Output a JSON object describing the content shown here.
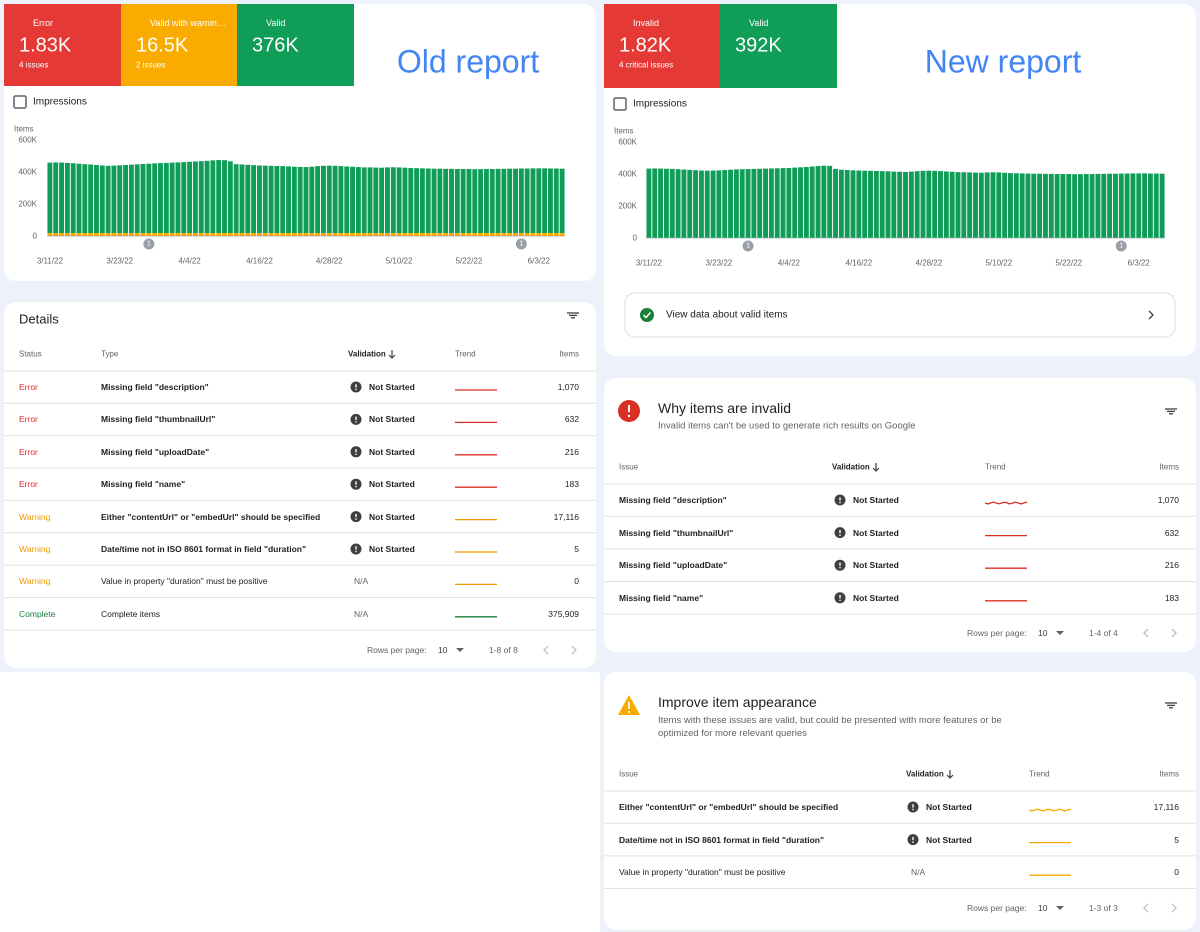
{
  "old_report": {
    "heading": "Old report",
    "tiles": [
      {
        "label": "Error",
        "value": "1.83K",
        "sub": "4 issues",
        "color": "#e53935"
      },
      {
        "label": "Valid with warnin…",
        "value": "16.5K",
        "sub": "2 issues",
        "color": "#f9ab00"
      },
      {
        "label": "Valid",
        "value": "376K",
        "color": "#0f9d58"
      }
    ],
    "impressions": "Impressions",
    "chart_data": {
      "type": "bar",
      "stacked": true,
      "y_label": "Items",
      "grid": false,
      "ylim": [
        0,
        600000
      ],
      "yticks": [
        0,
        {
          "value": 200000,
          "label": "200K"
        },
        {
          "value": 400000,
          "label": "400K"
        },
        {
          "value": 600000,
          "label": "600K"
        }
      ],
      "categories": [
        "3/11/22",
        null,
        null,
        null,
        null,
        null,
        null,
        null,
        null,
        null,
        null,
        null,
        "3/23/22",
        null,
        null,
        null,
        null,
        null,
        null,
        null,
        null,
        null,
        null,
        null,
        "4/4/22",
        null,
        null,
        null,
        null,
        null,
        null,
        null,
        null,
        null,
        null,
        null,
        "4/16/22",
        null,
        null,
        null,
        null,
        null,
        null,
        null,
        null,
        null,
        null,
        null,
        "4/28/22",
        null,
        null,
        null,
        null,
        null,
        null,
        null,
        null,
        null,
        null,
        null,
        "5/10/22",
        null,
        null,
        null,
        null,
        null,
        null,
        null,
        null,
        null,
        null,
        null,
        "5/22/22",
        null,
        null,
        null,
        null,
        null,
        null,
        null,
        null,
        null,
        null,
        null,
        "6/3/22",
        null,
        null,
        null,
        null
      ],
      "series": [
        {
          "color": "#e53935",
          "values": [
            1800,
            1800,
            1800,
            1800,
            1800,
            1800,
            1800,
            1800,
            1800,
            1800,
            1800,
            1800,
            1800,
            1800,
            1800,
            1800,
            1800,
            1800,
            1800,
            1800,
            1800,
            1800,
            1800,
            1800,
            1800,
            1800,
            1800,
            1800,
            1800,
            1800,
            1800,
            1800,
            1800,
            1800,
            1800,
            1800,
            1800,
            1800,
            1800,
            1800,
            1800,
            1800,
            1800,
            1800,
            1800,
            1800,
            1800,
            1800,
            1800,
            1800,
            1800,
            1800,
            1800,
            1800,
            1800,
            1800,
            1800,
            1800,
            1800,
            1800,
            1800,
            1800,
            1800,
            1800,
            1800,
            1800,
            1800,
            1800,
            1800,
            1800,
            1800,
            1800,
            1800,
            1800,
            1800,
            1800,
            1800,
            1800,
            1800,
            1800,
            1800,
            1800,
            1800,
            1800,
            1800,
            1800,
            1800,
            1800,
            1800
          ]
        },
        {
          "color": "#f9ab00",
          "values": [
            17000,
            17000,
            17000,
            17000,
            17000,
            17000,
            17000,
            17000,
            17000,
            17000,
            17000,
            17000,
            17000,
            17000,
            17000,
            17000,
            17000,
            17000,
            17000,
            17000,
            17000,
            17000,
            17000,
            17000,
            17000,
            17000,
            17000,
            17000,
            17000,
            17000,
            17000,
            17000,
            17000,
            17000,
            17000,
            17000,
            17000,
            17000,
            17000,
            17000,
            17000,
            17000,
            17000,
            17000,
            17000,
            17000,
            17000,
            17000,
            17000,
            17000,
            17000,
            17000,
            17000,
            17000,
            17000,
            17000,
            17000,
            17000,
            17000,
            17000,
            17000,
            17000,
            17000,
            17000,
            17000,
            17000,
            17000,
            17000,
            17000,
            17000,
            17000,
            17000,
            17000,
            17000,
            17000,
            17000,
            17000,
            17000,
            17000,
            17000,
            17000,
            17000,
            17000,
            17000,
            17000,
            17000,
            17000,
            17000,
            17000
          ]
        },
        {
          "color": "#0f9d58",
          "values": [
            440000,
            441000,
            440000,
            438000,
            436000,
            433000,
            430000,
            428000,
            425000,
            422000,
            420000,
            421000,
            423000,
            425000,
            427000,
            429000,
            431000,
            433000,
            435000,
            437000,
            438000,
            440000,
            441000,
            443000,
            445000,
            447000,
            449000,
            451000,
            454000,
            456000,
            455000,
            448000,
            430000,
            428000,
            426000,
            424000,
            422000,
            421000,
            420000,
            419000,
            418000,
            416000,
            414000,
            413000,
            412000,
            414000,
            418000,
            420000,
            421000,
            420000,
            418000,
            416000,
            414000,
            412000,
            410000,
            410000,
            409000,
            408000,
            410000,
            411000,
            410000,
            408000,
            406000,
            405000,
            404000,
            403000,
            402000,
            402000,
            401000,
            401000,
            400000,
            400000,
            400000,
            399000,
            399000,
            400000,
            400000,
            401000,
            401000,
            402000,
            402000,
            403000,
            403000,
            404000,
            404000,
            404000,
            403000,
            403000,
            402000
          ]
        }
      ],
      "annotations": [
        {
          "label": "1",
          "x": 17
        },
        {
          "label": "1",
          "x": 81
        }
      ]
    }
  },
  "details": {
    "title": "Details",
    "columns": [
      "Status",
      "Type",
      "Validation",
      "Trend",
      "Items"
    ],
    "rows": [
      {
        "cells": [
          "Error",
          "Missing field \"description\"",
          "Not Started",
          "1,070"
        ],
        "icon": true,
        "color": "#d93025"
      },
      {
        "cells": [
          "Error",
          "Missing field \"thumbnailUrl\"",
          "Not Started",
          "632"
        ],
        "icon": true,
        "color": "#d93025"
      },
      {
        "cells": [
          "Error",
          "Missing field \"uploadDate\"",
          "Not Started",
          "216"
        ],
        "icon": true,
        "color": "#d93025"
      },
      {
        "cells": [
          "Error",
          "Missing field \"name\"",
          "Not Started",
          "183"
        ],
        "icon": true,
        "color": "#d93025"
      },
      {
        "cells": [
          "Warning",
          "Either \"contentUrl\" or \"embedUrl\" should be specified",
          "Not Started",
          "17,116"
        ],
        "icon": true,
        "color": "#f29900"
      },
      {
        "cells": [
          "Warning",
          "Date/time not in ISO 8601 format in field \"duration\"",
          "Not Started",
          "5"
        ],
        "icon": true,
        "color": "#f29900"
      },
      {
        "cells": [
          "Warning",
          "Value in property \"duration\" must be positive",
          "N/A",
          "0"
        ],
        "icon": false,
        "color": "#f29900"
      },
      {
        "cells": [
          "Complete",
          "Complete items",
          "N/A",
          "375,909"
        ],
        "icon": false,
        "color": "#188038"
      }
    ],
    "footer": {
      "rows_per_page": "Rows per page:",
      "page_size": "10",
      "range": "1-8 of 8"
    }
  },
  "new_report": {
    "heading": "New report",
    "tiles": [
      {
        "label": "Invalid",
        "value": "1.82K",
        "sub": "4 critical issues",
        "color": "#e53935"
      },
      {
        "label": "Valid",
        "value": "392K",
        "color": "#0f9d58"
      }
    ],
    "impressions": "Impressions",
    "chart_data": {
      "type": "bar",
      "stacked": true,
      "y_label": "Items",
      "grid": false,
      "ylim": [
        0,
        600000
      ],
      "yticks": [
        0,
        {
          "value": 200000,
          "label": "200K"
        },
        {
          "value": 400000,
          "label": "400K"
        },
        {
          "value": 600000,
          "label": "600K"
        }
      ],
      "categories": [
        "3/11/22",
        null,
        null,
        null,
        null,
        null,
        null,
        null,
        null,
        null,
        null,
        null,
        "3/23/22",
        null,
        null,
        null,
        null,
        null,
        null,
        null,
        null,
        null,
        null,
        null,
        "4/4/22",
        null,
        null,
        null,
        null,
        null,
        null,
        null,
        null,
        null,
        null,
        null,
        "4/16/22",
        null,
        null,
        null,
        null,
        null,
        null,
        null,
        null,
        null,
        null,
        null,
        "4/28/22",
        null,
        null,
        null,
        null,
        null,
        null,
        null,
        null,
        null,
        null,
        null,
        "5/10/22",
        null,
        null,
        null,
        null,
        null,
        null,
        null,
        null,
        null,
        null,
        null,
        "5/22/22",
        null,
        null,
        null,
        null,
        null,
        null,
        null,
        null,
        null,
        null,
        null,
        "6/3/22",
        null,
        null,
        null,
        null
      ],
      "series": [
        {
          "color": "#9aa0a6",
          "values": [
            1800,
            1800,
            1800,
            1800,
            1800,
            1800,
            1800,
            1800,
            1800,
            1800,
            1800,
            1800,
            1800,
            1800,
            1800,
            1800,
            1800,
            1800,
            1800,
            1800,
            1800,
            1800,
            1800,
            1800,
            1800,
            1800,
            1800,
            1800,
            1800,
            1800,
            1800,
            1800,
            1800,
            1800,
            1800,
            1800,
            1800,
            1800,
            1800,
            1800,
            1800,
            1800,
            1800,
            1800,
            1800,
            1800,
            1800,
            1800,
            1800,
            1800,
            1800,
            1800,
            1800,
            1800,
            1800,
            1800,
            1800,
            1800,
            1800,
            1800,
            1800,
            1800,
            1800,
            1800,
            1800,
            1800,
            1800,
            1800,
            1800,
            1800,
            1800,
            1800,
            1800,
            1800,
            1800,
            1800,
            1800,
            1800,
            1800,
            1800,
            1800,
            1800,
            1800,
            1800,
            1800,
            1800,
            1800,
            1800,
            1800
          ]
        },
        {
          "color": "#0f9d58",
          "values": [
            432000,
            433000,
            432000,
            431000,
            430000,
            428000,
            426000,
            424000,
            422000,
            420000,
            419000,
            420000,
            421000,
            423000,
            425000,
            427000,
            428000,
            429000,
            430000,
            431000,
            432000,
            433000,
            434000,
            435000,
            436000,
            438000,
            440000,
            442000,
            445000,
            448000,
            450000,
            449000,
            430000,
            425000,
            423000,
            421000,
            420000,
            419000,
            418000,
            417000,
            416000,
            415000,
            413000,
            412000,
            411000,
            413000,
            416000,
            418000,
            419000,
            418000,
            416000,
            414000,
            412000,
            410000,
            409000,
            408000,
            407000,
            406000,
            408000,
            409000,
            408000,
            406000,
            404000,
            403000,
            402000,
            401000,
            400000,
            400000,
            399000,
            399000,
            398000,
            398000,
            398000,
            397000,
            397000,
            398000,
            398000,
            399000,
            399000,
            400000,
            400000,
            401000,
            401000,
            402000,
            402000,
            402000,
            401000,
            401000,
            400000
          ]
        }
      ],
      "annotations": [
        {
          "label": "1",
          "x": 17
        },
        {
          "label": "1",
          "x": 81
        }
      ]
    },
    "link": "View data about valid items"
  },
  "invalid_section": {
    "title": "Why items are invalid",
    "subtitle": "Invalid items can't be used to generate rich results on Google",
    "columns": [
      "Issue",
      "Validation",
      "Trend",
      "Items"
    ],
    "rows": [
      {
        "cells": [
          "Missing field \"description\"",
          "Not Started",
          "1,070"
        ],
        "icon": true,
        "color": "#d93025"
      },
      {
        "cells": [
          "Missing field \"thumbnailUrl\"",
          "Not Started",
          "632"
        ],
        "icon": true,
        "color": "#d93025"
      },
      {
        "cells": [
          "Missing field \"uploadDate\"",
          "Not Started",
          "216"
        ],
        "icon": true,
        "color": "#d93025"
      },
      {
        "cells": [
          "Missing field \"name\"",
          "Not Started",
          "183"
        ],
        "icon": true,
        "color": "#d93025"
      }
    ],
    "footer": {
      "rows_per_page": "Rows per page:",
      "page_size": "10",
      "range": "1-4 of 4"
    }
  },
  "improve_section": {
    "title": "Improve item appearance",
    "subtitle": "Items with these issues are valid, but could be presented with more features or be optimized for more relevant queries",
    "columns": [
      "Issue",
      "Validation",
      "Trend",
      "Items"
    ],
    "rows": [
      {
        "cells": [
          "Either \"contentUrl\" or \"embedUrl\" should be specified",
          "Not Started",
          "17,116"
        ],
        "icon": true,
        "color": "#f9ab00"
      },
      {
        "cells": [
          "Date/time not in ISO 8601 format in field \"duration\"",
          "Not Started",
          "5"
        ],
        "icon": true,
        "color": "#f9ab00"
      },
      {
        "cells": [
          "Value in property \"duration\" must be positive",
          "N/A",
          "0"
        ],
        "icon": false,
        "color": "#f9ab00"
      }
    ],
    "footer": {
      "rows_per_page": "Rows per page:",
      "page_size": "10",
      "range": "1-3 of 3"
    }
  }
}
